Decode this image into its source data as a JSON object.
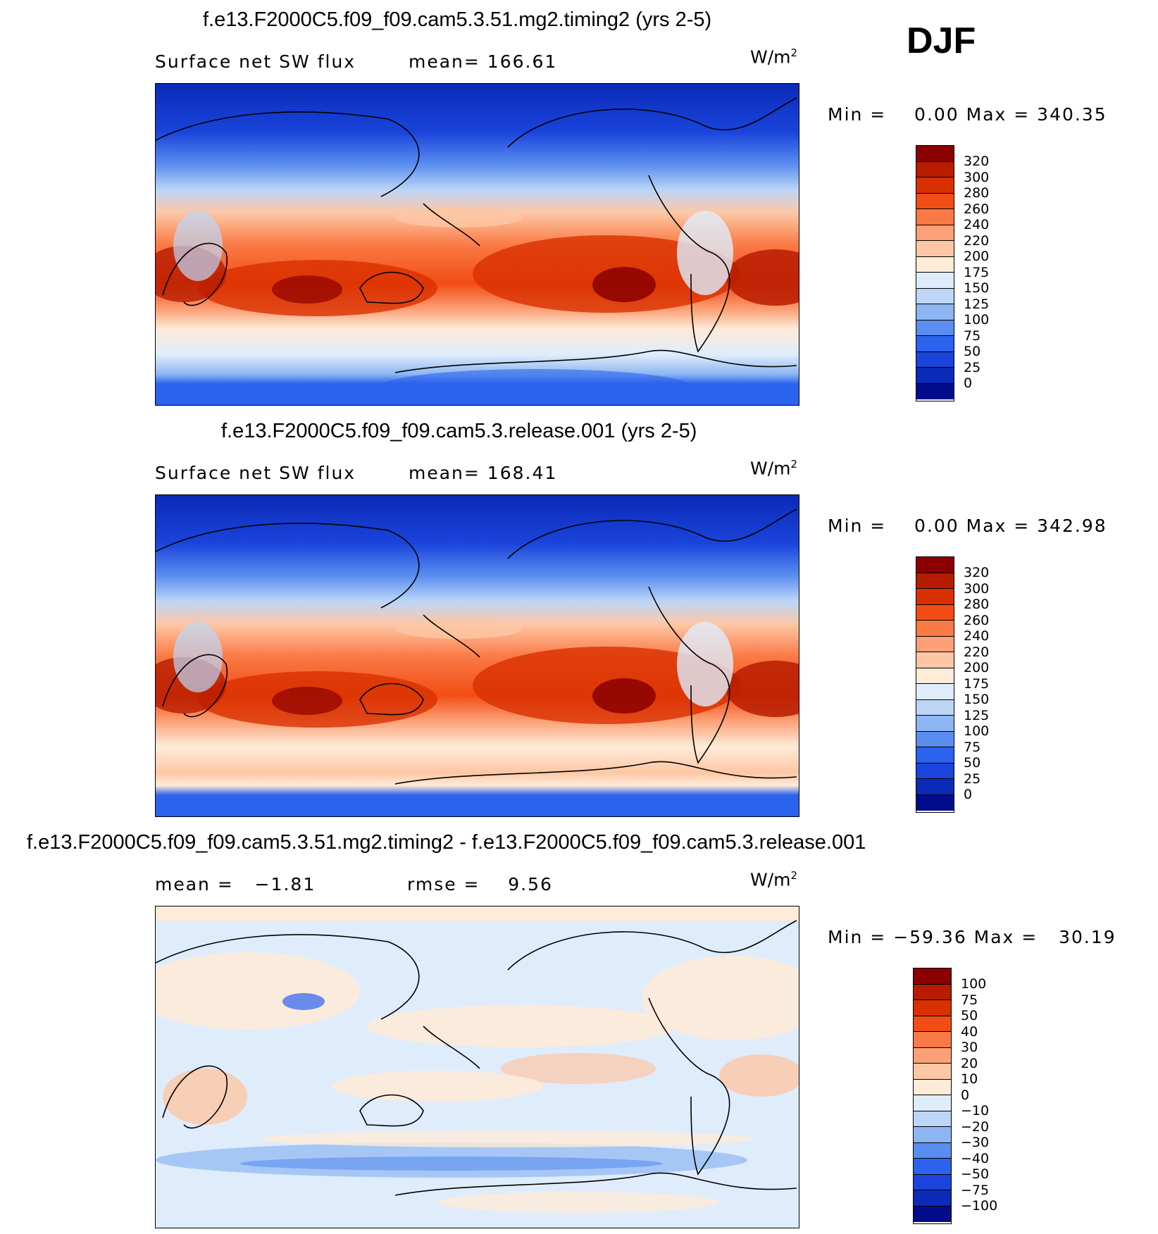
{
  "season": "DJF",
  "panels": [
    {
      "title": "f.e13.F2000C5.f09_f09.cam5.3.51.mg2.timing2 (yrs 2-5)",
      "variable": "Surface net SW flux",
      "stat1": "mean= 166.61",
      "stat2": "",
      "units": "W/m",
      "units_exp": "2",
      "minmax": "Min =    0.00 Max = 340.35",
      "levels": [
        "320",
        "300",
        "280",
        "260",
        "240",
        "220",
        "200",
        "175",
        "150",
        "125",
        "100",
        "75",
        "50",
        "25",
        "0"
      ],
      "colors": [
        "#8b0000",
        "#b71c00",
        "#d93000",
        "#f24d15",
        "#fa7a45",
        "#fca177",
        "#fdc7a5",
        "#feebd8",
        "#dfecfb",
        "#bdd6f7",
        "#8db6f2",
        "#5a8df0",
        "#2b62ee",
        "#1a44db",
        "#0b2ab8",
        "#020c8c"
      ]
    },
    {
      "title": "f.e13.F2000C5.f09_f09.cam5.3.release.001 (yrs 2-5)",
      "variable": "Surface net SW flux",
      "stat1": "mean= 168.41",
      "stat2": "",
      "units": "W/m",
      "units_exp": "2",
      "minmax": "Min =    0.00 Max = 342.98",
      "levels": [
        "320",
        "300",
        "280",
        "260",
        "240",
        "220",
        "200",
        "175",
        "150",
        "125",
        "100",
        "75",
        "50",
        "25",
        "0"
      ],
      "colors": [
        "#8b0000",
        "#b71c00",
        "#d93000",
        "#f24d15",
        "#fa7a45",
        "#fca177",
        "#fdc7a5",
        "#feebd8",
        "#dfecfb",
        "#bdd6f7",
        "#8db6f2",
        "#5a8df0",
        "#2b62ee",
        "#1a44db",
        "#0b2ab8",
        "#020c8c"
      ]
    },
    {
      "title": "f.e13.F2000C5.f09_f09.cam5.3.51.mg2.timing2 - f.e13.F2000C5.f09_f09.cam5.3.release.001",
      "variable": "",
      "stat1": "mean =   −1.81",
      "stat2": "rmse =    9.56",
      "units": "W/m",
      "units_exp": "2",
      "minmax": "Min = −59.36 Max =   30.19",
      "levels": [
        "100",
        "75",
        "50",
        "40",
        "30",
        "20",
        "10",
        "0",
        "−10",
        "−20",
        "−30",
        "−40",
        "−50",
        "−75",
        "−100"
      ],
      "colors": [
        "#8b0000",
        "#b71c00",
        "#d93000",
        "#f24d15",
        "#fa7a45",
        "#fca177",
        "#fdc7a5",
        "#feebd8",
        "#dfecfb",
        "#bdd6f7",
        "#8db6f2",
        "#5a8df0",
        "#2b62ee",
        "#1a44db",
        "#0b2ab8",
        "#020c8c"
      ]
    }
  ]
}
